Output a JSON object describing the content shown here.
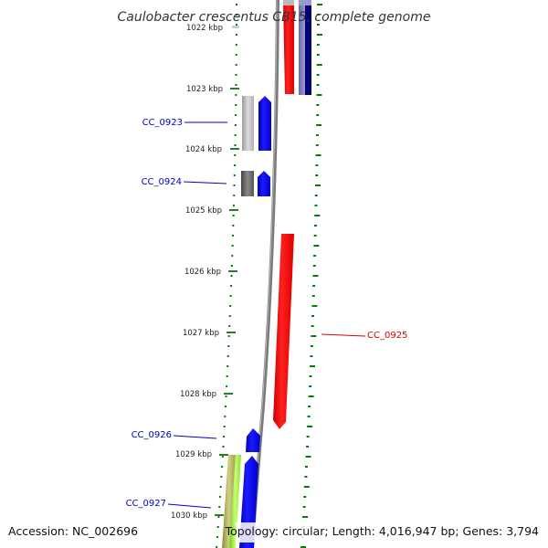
{
  "title": "Caulobacter crescentus CB15, complete genome",
  "footer": {
    "accession": "Accession: NC_002696",
    "summary": "Topology: circular; Length: 4,016,947 bp; Genes: 3,794"
  },
  "scale_labels": [
    "1022 kbp",
    "1023 kbp",
    "1024 kbp",
    "1025 kbp",
    "1026 kbp",
    "1027 kbp",
    "1028 kbp",
    "1029 kbp",
    "1030 kbp"
  ],
  "genes": [
    {
      "id": "CC_0923",
      "color": "#0000cc"
    },
    {
      "id": "CC_0924",
      "color": "#0000cc"
    },
    {
      "id": "CC_0925",
      "color": "#dd0000"
    },
    {
      "id": "CC_0926",
      "color": "#0000cc"
    },
    {
      "id": "CC_0927",
      "color": "#0000cc"
    }
  ],
  "colors": {
    "forward_cds": "#0000ff",
    "reverse_cds": "#ff0000",
    "backbone": "#808080",
    "gc_skew_dots": "#008000"
  }
}
